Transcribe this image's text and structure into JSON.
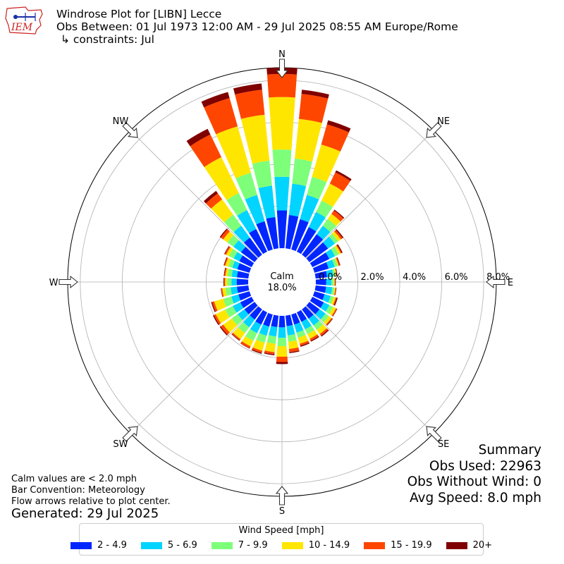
{
  "header": {
    "title": "Windrose Plot for [LIBN] Lecce",
    "obs_between": "Obs Between: 01 Jul 1973 12:00 AM - 29 Jul 2025 08:55 AM Europe/Rome",
    "constraints": "↳ constraints: Jul",
    "logo_text": "IEM"
  },
  "notes": {
    "calm": "Calm values are < 2.0 mph",
    "bar_convention": "Bar Convention: Meteorology",
    "flow_arrows": "Flow arrows relative to plot center.",
    "generated": "Generated: 29 Jul 2025"
  },
  "summary": {
    "title": "Summary",
    "obs_used": "Obs Used: 22963",
    "obs_without_wind": "Obs Without Wind: 0",
    "avg_speed": "Avg Speed: 8.0 mph"
  },
  "legend": {
    "title": "Wind Speed [mph]",
    "items": [
      {
        "label": "2 - 4.9",
        "color": "#0026ff"
      },
      {
        "label": "5 - 6.9",
        "color": "#00d4ff"
      },
      {
        "label": "7 - 9.9",
        "color": "#7dff7a"
      },
      {
        "label": "10 - 14.9",
        "color": "#ffe600"
      },
      {
        "label": "15 - 19.9",
        "color": "#ff4600"
      },
      {
        "label": "20+",
        "color": "#800000"
      }
    ]
  },
  "chart_data": {
    "type": "windrose",
    "calm_label": "Calm",
    "calm_percent": "18.0%",
    "radial_ticks": [
      "0.0%",
      "2.0%",
      "4.0%",
      "6.0%",
      "8.0%"
    ],
    "radial_range": [
      0,
      8.6
    ],
    "compass_labels": [
      "N",
      "NE",
      "E",
      "SE",
      "S",
      "SW",
      "W",
      "NW"
    ],
    "speed_bins": [
      "2 - 4.9",
      "5 - 6.9",
      "7 - 9.9",
      "10 - 14.9",
      "15 - 19.9",
      "20+"
    ],
    "sector_width_deg": 10,
    "directions_deg": [
      0,
      10,
      20,
      30,
      40,
      50,
      60,
      70,
      80,
      90,
      100,
      110,
      120,
      130,
      140,
      150,
      160,
      170,
      180,
      190,
      200,
      210,
      220,
      230,
      240,
      250,
      260,
      270,
      280,
      290,
      300,
      310,
      320,
      330,
      340,
      350
    ],
    "cumulative_percent": [
      [
        1.8,
        3.4,
        4.7,
        7.2,
        8.3,
        8.6
      ],
      [
        1.6,
        3.1,
        4.3,
        6.2,
        7.4,
        7.6
      ],
      [
        1.5,
        2.7,
        3.6,
        5.2,
        6.2,
        6.4
      ],
      [
        1.3,
        2.1,
        2.7,
        3.6,
        4.2,
        4.3
      ],
      [
        1.2,
        1.7,
        2.1,
        2.4,
        2.6,
        2.65
      ],
      [
        1.1,
        1.5,
        1.7,
        1.85,
        1.95,
        2.0
      ],
      [
        0.9,
        1.2,
        1.4,
        1.5,
        1.55,
        1.6
      ],
      [
        0.7,
        1.0,
        1.15,
        1.2,
        1.25,
        1.28
      ],
      [
        0.55,
        0.85,
        0.95,
        1.0,
        1.02,
        1.05
      ],
      [
        0.5,
        0.75,
        0.85,
        0.9,
        0.92,
        0.95
      ],
      [
        0.5,
        0.8,
        0.9,
        0.95,
        0.98,
        1.0
      ],
      [
        0.5,
        0.8,
        0.95,
        1.05,
        1.1,
        1.15
      ],
      [
        0.6,
        0.9,
        1.1,
        1.25,
        1.3,
        1.32
      ],
      [
        0.6,
        0.95,
        1.15,
        1.3,
        1.35,
        1.38
      ],
      [
        0.55,
        0.95,
        1.2,
        1.45,
        1.55,
        1.6
      ],
      [
        0.5,
        0.9,
        1.15,
        1.4,
        1.5,
        1.55
      ],
      [
        0.5,
        0.9,
        1.15,
        1.45,
        1.55,
        1.6
      ],
      [
        0.5,
        0.95,
        1.25,
        1.6,
        1.75,
        1.8
      ],
      [
        0.55,
        1.05,
        1.45,
        1.95,
        2.2,
        2.3
      ],
      [
        0.55,
        1.0,
        1.35,
        1.75,
        1.85,
        1.9
      ],
      [
        0.6,
        1.05,
        1.4,
        1.8,
        1.9,
        1.95
      ],
      [
        0.65,
        1.1,
        1.5,
        1.8,
        1.9,
        1.92
      ],
      [
        0.6,
        1.05,
        1.4,
        1.75,
        1.82,
        1.85
      ],
      [
        0.6,
        1.0,
        1.35,
        1.85,
        2.0,
        2.05
      ],
      [
        0.6,
        1.0,
        1.4,
        1.9,
        2.0,
        2.05
      ],
      [
        0.55,
        0.9,
        1.3,
        1.75,
        1.85,
        1.9
      ],
      [
        0.55,
        0.85,
        1.1,
        1.25,
        1.3,
        1.32
      ],
      [
        0.55,
        0.8,
        1.0,
        1.1,
        1.15,
        1.18
      ],
      [
        0.55,
        0.8,
        1.0,
        1.1,
        1.15,
        1.18
      ],
      [
        0.6,
        0.85,
        1.05,
        1.2,
        1.25,
        1.28
      ],
      [
        0.65,
        0.95,
        1.2,
        1.35,
        1.42,
        1.45
      ],
      [
        0.8,
        1.25,
        1.6,
        1.85,
        2.0,
        2.05
      ],
      [
        1.0,
        1.7,
        2.35,
        3.25,
        3.6,
        3.75
      ],
      [
        1.2,
        2.2,
        3.1,
        5.0,
        6.2,
        6.5
      ],
      [
        1.4,
        2.7,
        3.8,
        6.1,
        7.5,
        7.8
      ],
      [
        1.5,
        3.0,
        4.2,
        6.4,
        7.6,
        7.9
      ]
    ]
  }
}
